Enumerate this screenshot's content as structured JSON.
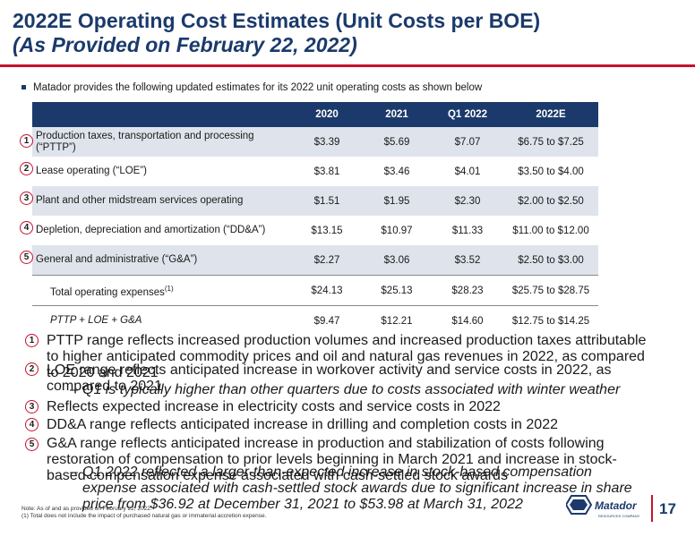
{
  "title": {
    "line1": "2022E Operating Cost Estimates (Unit Costs per BOE)",
    "line2": "(As Provided on February 22, 2022)"
  },
  "intro": "Matador provides the following updated estimates for its 2022 unit operating costs as shown below",
  "table": {
    "headers": [
      "",
      "2020",
      "2021",
      "Q1 2022",
      "2022E"
    ],
    "rows": [
      {
        "badge": "1",
        "label": "Production taxes, transportation and processing (“PTTP”)",
        "values": [
          "$3.39",
          "$5.69",
          "$7.07",
          "$6.75 to $7.25"
        ]
      },
      {
        "badge": "2",
        "label": "Lease operating (“LOE”)",
        "values": [
          "$3.81",
          "$3.46",
          "$4.01",
          "$3.50 to $4.00"
        ]
      },
      {
        "badge": "3",
        "label": "Plant and other midstream services operating",
        "values": [
          "$1.51",
          "$1.95",
          "$2.30",
          "$2.00 to $2.50"
        ]
      },
      {
        "badge": "4",
        "label": "Depletion, depreciation and amortization (“DD&A”)",
        "values": [
          "$13.15",
          "$10.97",
          "$11.33",
          "$11.00 to $12.00"
        ]
      },
      {
        "badge": "5",
        "label": "General and administrative (“G&A”)",
        "values": [
          "$2.27",
          "$3.06",
          "$3.52",
          "$2.50 to $3.00"
        ]
      }
    ],
    "total": {
      "label": "Total operating expenses",
      "sup": "(1)",
      "values": [
        "$24.13",
        "$25.13",
        "$28.23",
        "$25.75 to $28.75"
      ]
    },
    "pttp": {
      "label": "PTTP + LOE + G&A",
      "values": [
        "$9.47",
        "$12.21",
        "$14.60",
        "$12.75 to $14.25"
      ]
    }
  },
  "notes": [
    {
      "badge": "1",
      "text": "PTTP range reflects increased production volumes and increased production taxes attributable to higher anticipated commodity prices and oil and natural gas revenues in 2022, as compared to 2020 and 2021"
    },
    {
      "badge": "2",
      "text": "LOE range reflects anticipated increase in workover activity and service costs in 2022, as compared to 2021"
    },
    {
      "sub": true,
      "text": "Q1 is typically higher than other quarters due to costs associated with winter weather"
    },
    {
      "badge": "3",
      "text": "Reflects expected increase in electricity costs and service costs in 2022"
    },
    {
      "badge": "4",
      "text": "DD&A range reflects anticipated increase in drilling and completion costs in 2022"
    },
    {
      "badge": "5",
      "text": "G&A range reflects anticipated increase in production and stabilization of costs following restoration of compensation to prior levels beginning in March 2021 and increase in stock-based compensation expense associated with cash-settled stock awards"
    },
    {
      "sub": true,
      "text": "Q1 2022 reflected a larger-than-expected increase in stock-based compensation expense associated with cash-settled stock awards due to significant increase in share price from $36.92 at December 31, 2021 to $53.98 at March 31, 2022"
    }
  ],
  "dash": "–",
  "footnote": {
    "line1": "Note: As of and as provided on February 22, 2022.",
    "line2": "(1)  Total does not include the impact of purchased natural gas or immaterial accretion expense."
  },
  "logo": {
    "name": "Matador",
    "tagline": "RESOURCES COMPANY"
  },
  "page_number": "17",
  "colors": {
    "navy": "#1b3a6b",
    "red": "#c8102e",
    "row_shade": "#dfe4ec"
  }
}
